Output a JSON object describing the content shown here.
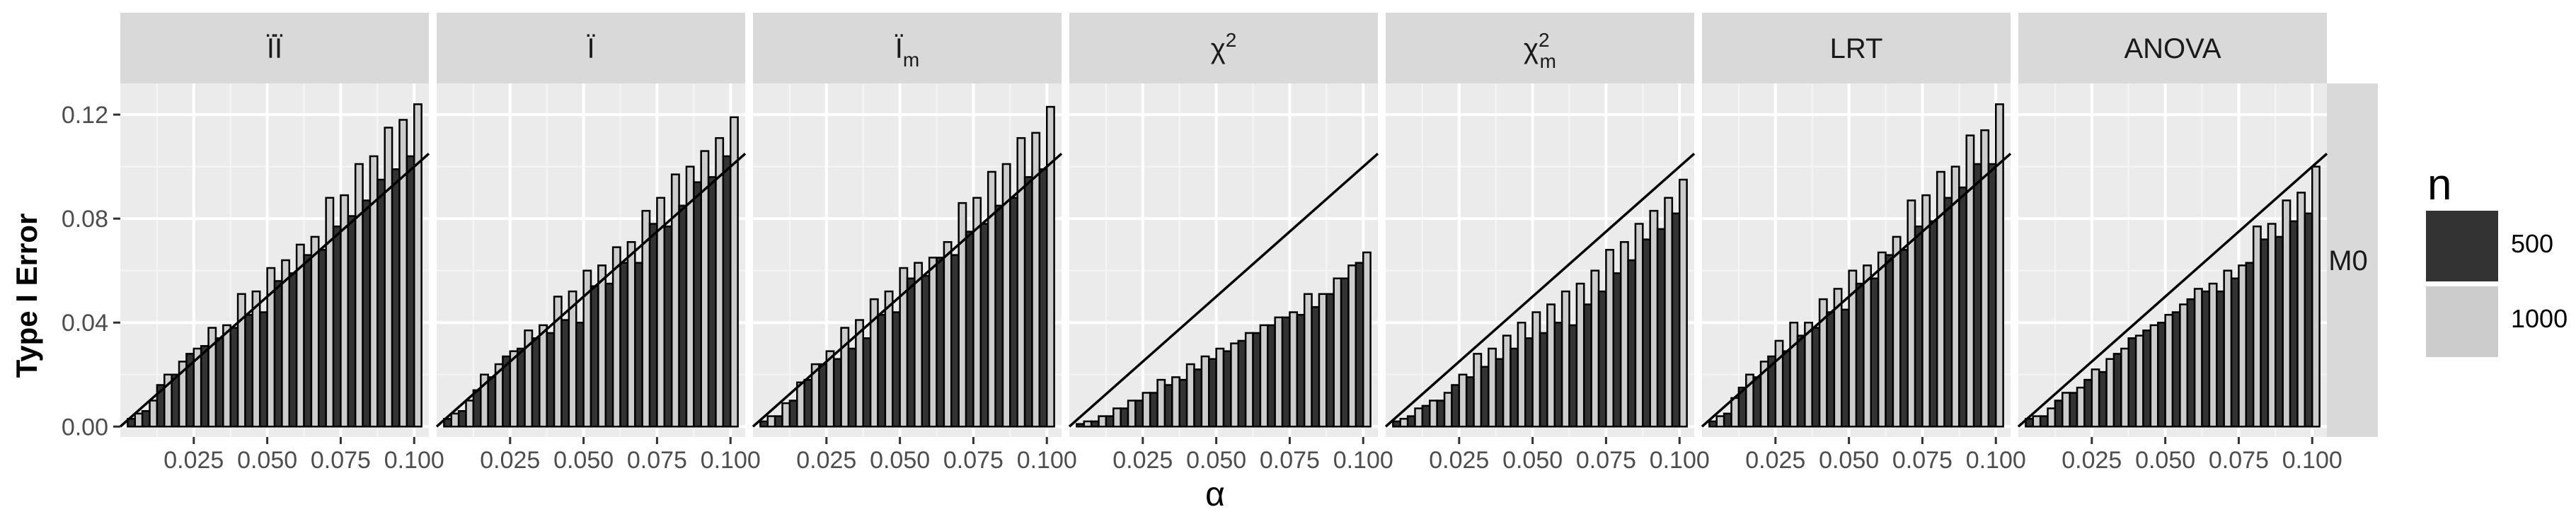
{
  "chart_data": {
    "type": "bar",
    "ylabel": "Type I Error",
    "xlabel": "α",
    "x_tick_labels": [
      "0.025",
      "0.050",
      "0.075",
      "0.100"
    ],
    "y_tick_labels": [
      "0.00",
      "0.04",
      "0.08",
      "0.12"
    ],
    "xlim": [
      0.0,
      0.105
    ],
    "ylim": [
      -0.004,
      0.132
    ],
    "grid": true,
    "row_strip": "M0",
    "legend": {
      "title": "n",
      "position": "right",
      "entries": [
        {
          "label": "500",
          "color": "#333333"
        },
        {
          "label": "1000",
          "color": "#cccccc"
        }
      ]
    },
    "reference_line": "y = x",
    "alpha": [
      0.005,
      0.01,
      0.015,
      0.02,
      0.025,
      0.03,
      0.035,
      0.04,
      0.045,
      0.05,
      0.055,
      0.06,
      0.065,
      0.07,
      0.075,
      0.08,
      0.085,
      0.09,
      0.095,
      0.1
    ],
    "panels": [
      {
        "label": "ÏÏ",
        "series": [
          {
            "name": "500",
            "values": [
              0.003,
              0.006,
              0.016,
              0.02,
              0.028,
              0.031,
              0.034,
              0.038,
              0.043,
              0.044,
              0.056,
              0.059,
              0.066,
              0.068,
              0.077,
              0.081,
              0.087,
              0.095,
              0.099,
              0.104
            ]
          },
          {
            "name": "1000",
            "values": [
              0.005,
              0.01,
              0.02,
              0.025,
              0.03,
              0.038,
              0.039,
              0.051,
              0.052,
              0.061,
              0.064,
              0.07,
              0.073,
              0.088,
              0.089,
              0.101,
              0.104,
              0.115,
              0.118,
              0.124
            ]
          }
        ]
      },
      {
        "label": "Ï",
        "series": [
          {
            "name": "500",
            "values": [
              0.003,
              0.006,
              0.014,
              0.019,
              0.027,
              0.03,
              0.034,
              0.036,
              0.041,
              0.04,
              0.054,
              0.055,
              0.063,
              0.063,
              0.078,
              0.077,
              0.085,
              0.094,
              0.096,
              0.104
            ]
          },
          {
            "name": "1000",
            "values": [
              0.005,
              0.01,
              0.02,
              0.024,
              0.029,
              0.037,
              0.039,
              0.05,
              0.052,
              0.06,
              0.062,
              0.069,
              0.071,
              0.083,
              0.088,
              0.097,
              0.1,
              0.106,
              0.111,
              0.119
            ]
          }
        ]
      },
      {
        "label": "Ï",
        "subscript": "m",
        "series": [
          {
            "name": "500",
            "values": [
              0.002,
              0.004,
              0.01,
              0.018,
              0.024,
              0.026,
              0.03,
              0.034,
              0.043,
              0.044,
              0.057,
              0.058,
              0.065,
              0.066,
              0.075,
              0.078,
              0.085,
              0.088,
              0.096,
              0.099
            ]
          },
          {
            "name": "1000",
            "values": [
              0.004,
              0.009,
              0.017,
              0.024,
              0.029,
              0.038,
              0.041,
              0.049,
              0.052,
              0.061,
              0.063,
              0.065,
              0.071,
              0.086,
              0.088,
              0.098,
              0.101,
              0.111,
              0.113,
              0.123
            ]
          }
        ]
      },
      {
        "label": "χ",
        "superscript": "2",
        "series": [
          {
            "name": "500",
            "values": [
              0.001,
              0.002,
              0.004,
              0.007,
              0.01,
              0.013,
              0.016,
              0.018,
              0.022,
              0.026,
              0.029,
              0.033,
              0.036,
              0.039,
              0.042,
              0.043,
              0.046,
              0.051,
              0.057,
              0.063
            ]
          },
          {
            "name": "1000",
            "values": [
              0.002,
              0.004,
              0.007,
              0.01,
              0.013,
              0.018,
              0.019,
              0.024,
              0.027,
              0.03,
              0.032,
              0.036,
              0.039,
              0.042,
              0.044,
              0.051,
              0.051,
              0.057,
              0.062,
              0.067
            ]
          }
        ]
      },
      {
        "label": "χ",
        "superscript": "2",
        "subscript": "m",
        "series": [
          {
            "name": "500",
            "values": [
              0.002,
              0.004,
              0.008,
              0.01,
              0.016,
              0.019,
              0.023,
              0.026,
              0.03,
              0.034,
              0.036,
              0.04,
              0.039,
              0.047,
              0.052,
              0.059,
              0.064,
              0.072,
              0.076,
              0.082
            ]
          },
          {
            "name": "1000",
            "values": [
              0.003,
              0.007,
              0.01,
              0.013,
              0.02,
              0.028,
              0.03,
              0.035,
              0.04,
              0.044,
              0.047,
              0.052,
              0.055,
              0.06,
              0.068,
              0.071,
              0.078,
              0.083,
              0.088,
              0.095
            ]
          }
        ]
      },
      {
        "label": "LRT",
        "series": [
          {
            "name": "500",
            "values": [
              0.002,
              0.005,
              0.015,
              0.019,
              0.027,
              0.029,
              0.035,
              0.038,
              0.044,
              0.045,
              0.055,
              0.057,
              0.066,
              0.068,
              0.077,
              0.079,
              0.088,
              0.092,
              0.101,
              0.101
            ]
          },
          {
            "name": "1000",
            "values": [
              0.004,
              0.011,
              0.02,
              0.025,
              0.033,
              0.04,
              0.04,
              0.049,
              0.053,
              0.06,
              0.062,
              0.067,
              0.073,
              0.087,
              0.089,
              0.098,
              0.1,
              0.112,
              0.114,
              0.124
            ]
          }
        ]
      },
      {
        "label": "ANOVA",
        "series": [
          {
            "name": "500",
            "values": [
              0.003,
              0.004,
              0.01,
              0.013,
              0.018,
              0.021,
              0.028,
              0.034,
              0.037,
              0.04,
              0.044,
              0.049,
              0.052,
              0.052,
              0.057,
              0.063,
              0.072,
              0.073,
              0.079,
              0.082
            ]
          },
          {
            "name": "1000",
            "values": [
              0.004,
              0.007,
              0.013,
              0.015,
              0.022,
              0.026,
              0.03,
              0.035,
              0.039,
              0.043,
              0.047,
              0.053,
              0.055,
              0.06,
              0.062,
              0.077,
              0.078,
              0.087,
              0.09,
              0.1
            ]
          }
        ]
      }
    ]
  }
}
